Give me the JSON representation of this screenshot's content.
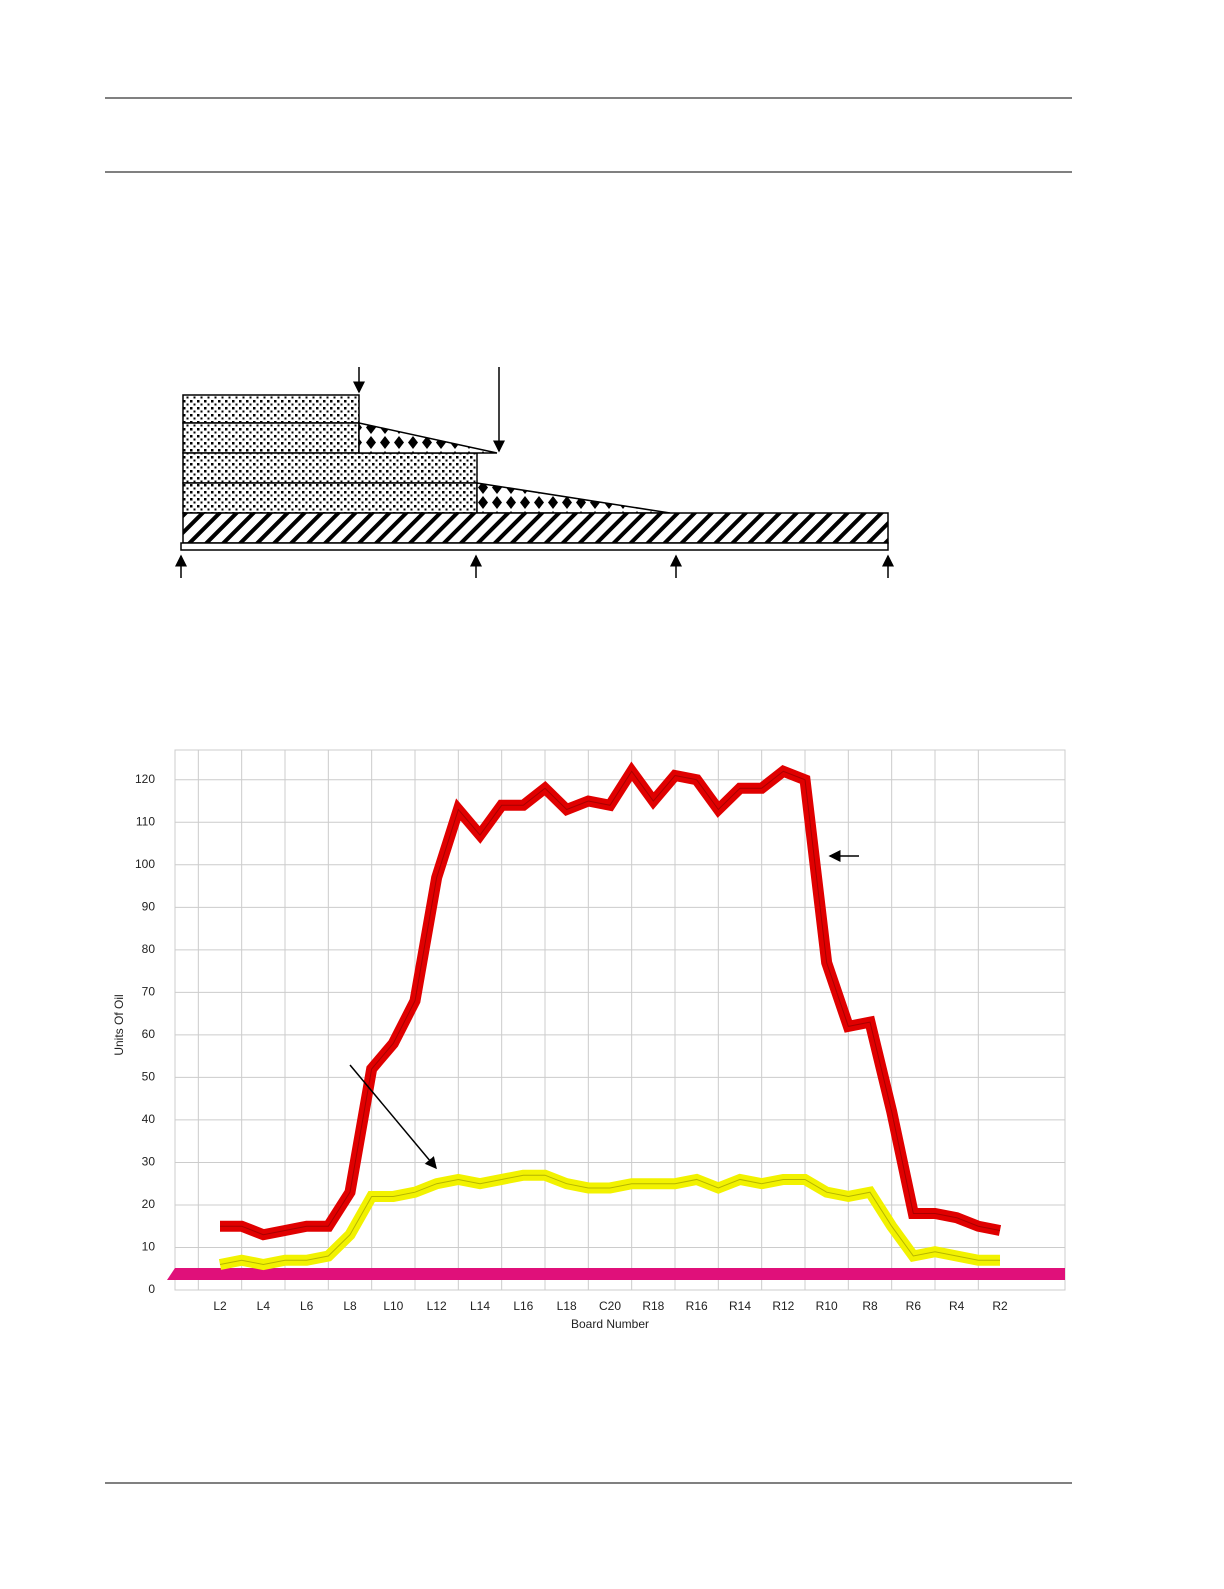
{
  "chart_data": {
    "type": "line",
    "x_label": "Board Number",
    "y_label": "Units Of Oil",
    "categories": [
      "L2",
      null,
      "L4",
      null,
      "L6",
      null,
      "L8",
      null,
      "L10",
      null,
      "L12",
      null,
      "L14",
      null,
      "L16",
      null,
      "L18",
      null,
      "C20",
      null,
      "R18",
      null,
      "R16",
      null,
      "R14",
      null,
      "R12",
      null,
      "R10",
      null,
      "R8",
      null,
      "R6",
      null,
      "R4",
      null,
      "R2"
    ],
    "series": [
      {
        "color": "#e00000",
        "values": [
          15,
          15,
          13,
          14,
          15,
          15,
          23,
          52,
          58,
          68,
          97,
          113,
          107,
          114,
          114,
          118,
          113,
          115,
          114,
          122,
          115,
          121,
          120,
          113,
          118,
          118,
          122,
          120,
          77,
          62,
          63,
          42,
          18,
          18,
          17,
          15,
          14
        ]
      },
      {
        "color": "#f2f200",
        "values": [
          6,
          7,
          6,
          7,
          7,
          8,
          13,
          22,
          22,
          23,
          25,
          26,
          25,
          26,
          27,
          27,
          25,
          24,
          24,
          25,
          25,
          25,
          26,
          24,
          26,
          25,
          26,
          26,
          23,
          22,
          23,
          15,
          8,
          9,
          8,
          7,
          7
        ]
      }
    ],
    "ylim": [
      0,
      127
    ],
    "yticks": [
      0,
      10,
      20,
      30,
      40,
      50,
      60,
      70,
      80,
      90,
      100,
      110,
      120
    ],
    "grid": true
  }
}
